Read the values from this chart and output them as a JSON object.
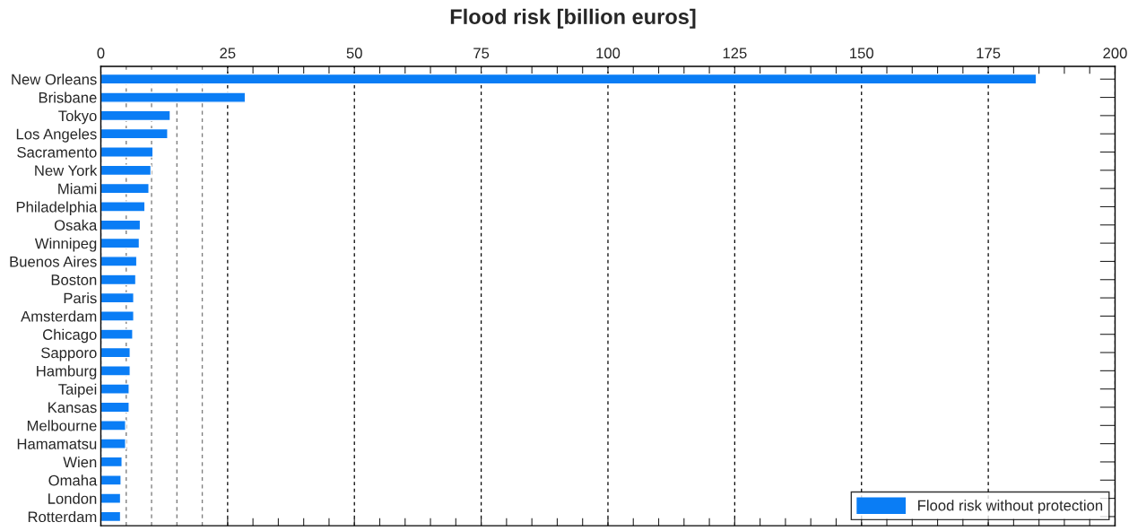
{
  "chart_data": {
    "type": "bar",
    "orientation": "horizontal",
    "title": "Flood risk [billion euros]",
    "categories": [
      "New Orleans",
      "Brisbane",
      "Tokyo",
      "Los Angeles",
      "Sacramento",
      "New York",
      "Miami",
      "Philadelphia",
      "Osaka",
      "Winnipeg",
      "Buenos Aires",
      "Boston",
      "Paris",
      "Amsterdam",
      "Chicago",
      "Sapporo",
      "Hamburg",
      "Taipei",
      "Kansas",
      "Melbourne",
      "Hamamatsu",
      "Wien",
      "Omaha",
      "London",
      "Rotterdam"
    ],
    "series": [
      {
        "name": "Flood risk without protection",
        "color": "#0a7df5",
        "values": [
          184.5,
          28.5,
          13.7,
          13.2,
          10.3,
          9.9,
          9.5,
          8.7,
          7.8,
          7.6,
          7.1,
          6.9,
          6.5,
          6.5,
          6.3,
          5.8,
          5.8,
          5.6,
          5.6,
          4.9,
          4.9,
          4.2,
          4.0,
          3.9,
          3.9
        ]
      }
    ],
    "xlim": [
      0,
      200
    ],
    "xticks": [
      0,
      25,
      {
        "value": 30,
        "label": null
      },
      {
        "value": 35,
        "label": null
      },
      {
        "value": 40,
        "label": null
      },
      {
        "value": 45,
        "label": null
      },
      50,
      {
        "value": 55,
        "label": null
      },
      {
        "value": 60,
        "label": null
      },
      {
        "value": 65,
        "label": null
      },
      {
        "value": 70,
        "label": null
      },
      75,
      {
        "value": 80,
        "label": null
      },
      {
        "value": 85,
        "label": null
      },
      {
        "value": 90,
        "label": null
      },
      {
        "value": 95,
        "label": null
      },
      100,
      {
        "value": 105,
        "label": null
      },
      {
        "value": 110,
        "label": null
      },
      {
        "value": 115,
        "label": null
      },
      {
        "value": 120,
        "label": null
      },
      125,
      {
        "value": 130,
        "label": null
      },
      {
        "value": 135,
        "label": null
      },
      {
        "value": 140,
        "label": null
      },
      {
        "value": 145,
        "label": null
      },
      150,
      {
        "value": 155,
        "label": null
      },
      {
        "value": 160,
        "label": null
      },
      {
        "value": 165,
        "label": null
      },
      {
        "value": 170,
        "label": null
      },
      175,
      {
        "value": 180,
        "label": null
      },
      {
        "value": 185,
        "label": null
      },
      {
        "value": 190,
        "label": null
      },
      {
        "value": 195,
        "label": null
      },
      200
    ],
    "grid": "x",
    "ref_lines": [
      {
        "axis": "x",
        "value": 5,
        "color": "#808080",
        "line_style": "dashed"
      },
      {
        "axis": "x",
        "value": 10,
        "color": "#808080",
        "line_style": "dashed"
      },
      {
        "axis": "x",
        "value": 15,
        "color": "#808080",
        "line_style": "dashed"
      },
      {
        "axis": "x",
        "value": 20,
        "color": "#808080",
        "line_style": "dashed"
      }
    ],
    "legend": "bottom right"
  }
}
